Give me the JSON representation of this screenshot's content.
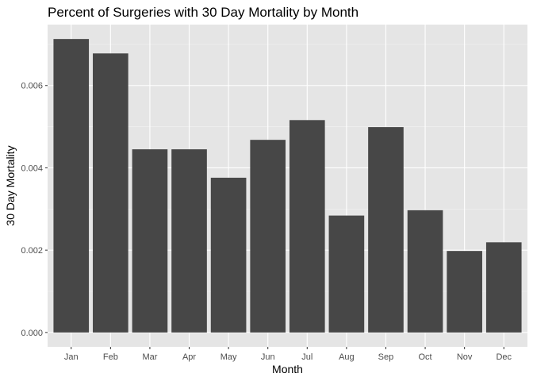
{
  "chart_data": {
    "type": "bar",
    "title": "Percent of Surgeries with 30 Day Mortality by Month",
    "xlabel": "Month",
    "ylabel": "30 Day Mortality",
    "categories": [
      "Jan",
      "Feb",
      "Mar",
      "Apr",
      "May",
      "Jun",
      "Jul",
      "Aug",
      "Sep",
      "Oct",
      "Nov",
      "Dec"
    ],
    "values": [
      0.00713,
      0.00678,
      0.00445,
      0.00445,
      0.00376,
      0.00468,
      0.00516,
      0.00284,
      0.00499,
      0.00297,
      0.00198,
      0.00219
    ],
    "yticks": [
      0.0,
      0.002,
      0.004,
      0.006
    ],
    "ytick_labels": [
      "0.000",
      "0.002",
      "0.004",
      "0.006"
    ],
    "ylim": [
      -0.00035,
      0.00748
    ],
    "grid": true,
    "legend": "none",
    "colors": {
      "panel_background": "#e5e5e5",
      "grid_major": "#ffffff",
      "grid_minor": "#f2f2f2",
      "bar_fill": "#474747",
      "tick_text": "#4d4d4d",
      "tick_mark": "#333333"
    }
  }
}
